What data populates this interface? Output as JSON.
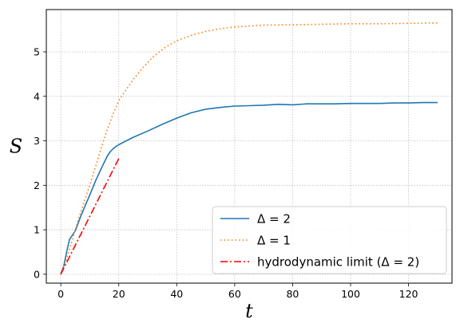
{
  "chart_data": {
    "type": "line",
    "title": "",
    "xlabel": "t",
    "ylabel": "S",
    "xlim": [
      -5,
      135
    ],
    "ylim": [
      -0.2,
      5.95
    ],
    "xticks": [
      0,
      20,
      40,
      60,
      80,
      100,
      120
    ],
    "yticks": [
      0,
      1,
      2,
      3,
      4,
      5
    ],
    "xtick_labels": [
      "0",
      "20",
      "40",
      "60",
      "80",
      "100",
      "120"
    ],
    "ytick_labels": [
      "0",
      "1",
      "2",
      "3",
      "4",
      "5"
    ],
    "grid": true,
    "legend_position": "bottom-right",
    "series": [
      {
        "name": "Δ = 2",
        "color": "#1f77b4",
        "style": "solid",
        "x": [
          0,
          1,
          2,
          3,
          4,
          5,
          6,
          7,
          8,
          10,
          12,
          14,
          16,
          17,
          18,
          19,
          20,
          22,
          25,
          30,
          35,
          40,
          45,
          50,
          55,
          60,
          65,
          70,
          75,
          80,
          85,
          90,
          95,
          100,
          105,
          110,
          115,
          120,
          125,
          130
        ],
        "y": [
          0,
          0.18,
          0.5,
          0.78,
          0.88,
          0.98,
          1.15,
          1.32,
          1.48,
          1.78,
          2.1,
          2.38,
          2.65,
          2.75,
          2.82,
          2.87,
          2.91,
          2.98,
          3.08,
          3.22,
          3.37,
          3.51,
          3.63,
          3.71,
          3.75,
          3.78,
          3.79,
          3.8,
          3.82,
          3.81,
          3.83,
          3.83,
          3.83,
          3.84,
          3.84,
          3.84,
          3.85,
          3.85,
          3.86,
          3.86
        ]
      },
      {
        "name": "Δ = 1",
        "color": "#ff7f0e",
        "style": "dotted",
        "x": [
          0,
          2,
          4,
          6,
          8,
          10,
          12,
          14,
          16,
          18,
          20,
          22,
          25,
          28,
          32,
          36,
          40,
          45,
          50,
          55,
          60,
          65,
          70,
          80,
          90,
          100,
          110,
          120,
          130
        ],
        "y": [
          0,
          0.35,
          0.78,
          1.22,
          1.62,
          2.0,
          2.42,
          2.85,
          3.25,
          3.6,
          3.9,
          4.1,
          4.38,
          4.62,
          4.9,
          5.1,
          5.25,
          5.37,
          5.46,
          5.52,
          5.56,
          5.58,
          5.6,
          5.61,
          5.62,
          5.63,
          5.63,
          5.64,
          5.65
        ]
      },
      {
        "name": "hydrodynamic limit (Δ = 2)",
        "color": "#ff0000",
        "style": "dashdot",
        "x": [
          0,
          20
        ],
        "y": [
          0,
          2.6
        ]
      }
    ]
  }
}
